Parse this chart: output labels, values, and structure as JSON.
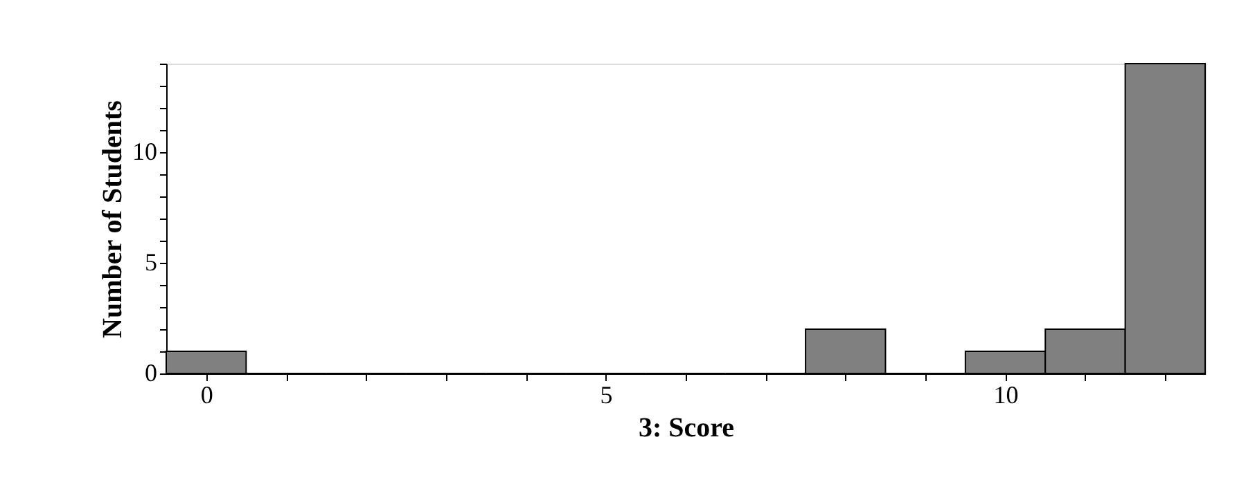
{
  "chart_data": {
    "type": "histogram",
    "xlabel": "3: Score",
    "ylabel": "Number of Students",
    "bins": [
      -0.5,
      0.5,
      1.5,
      2.5,
      3.5,
      4.5,
      5.5,
      6.5,
      7.5,
      8.5,
      9.5,
      10.5,
      11.5,
      12.5
    ],
    "values": [
      1,
      0,
      0,
      0,
      0,
      0,
      0,
      0,
      2,
      0,
      1,
      2,
      14
    ],
    "color": "#808080",
    "xlim": [
      -0.5,
      12.5
    ],
    "ylim": [
      0,
      14
    ],
    "xticks": [
      0,
      {
        "value": 1,
        "label": null
      },
      {
        "value": 2,
        "label": null
      },
      {
        "value": 3,
        "label": null
      },
      {
        "value": 4,
        "label": null
      },
      5,
      {
        "value": 6,
        "label": null
      },
      {
        "value": 7,
        "label": null
      },
      {
        "value": 8,
        "label": null
      },
      {
        "value": 9,
        "label": null
      },
      10,
      {
        "value": 11,
        "label": null
      },
      {
        "value": 12,
        "label": null
      }
    ],
    "yticks": [
      0,
      {
        "value": 1,
        "label": null
      },
      {
        "value": 2,
        "label": null
      },
      {
        "value": 3,
        "label": null
      },
      {
        "value": 4,
        "label": null
      },
      5,
      {
        "value": 6,
        "label": null
      },
      {
        "value": 7,
        "label": null
      },
      {
        "value": 8,
        "label": null
      },
      {
        "value": 9,
        "label": null
      },
      10,
      {
        "value": 11,
        "label": null
      },
      {
        "value": 12,
        "label": null
      },
      {
        "value": 13,
        "label": null
      },
      {
        "value": 14,
        "label": null
      }
    ],
    "grid": false
  }
}
